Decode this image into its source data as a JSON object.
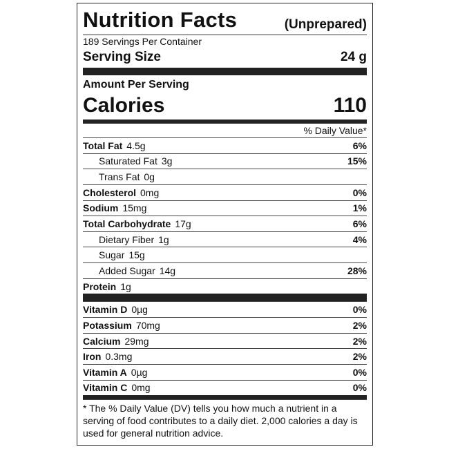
{
  "header": {
    "title": "Nutrition Facts",
    "qualifier": "(Unprepared)",
    "servings": "189 Servings Per Container",
    "serving_size_label": "Serving Size",
    "serving_size": "24 g"
  },
  "amount_per_serving": "Amount Per Serving",
  "calories": {
    "label": "Calories",
    "value": "110"
  },
  "dv_header": "% Daily Value*",
  "nutrients": [
    {
      "name": "Total Fat",
      "amount": "4.5g",
      "dv": "6%"
    },
    {
      "name": "Saturated Fat",
      "amount": "3g",
      "dv": "15%",
      "indent": true
    },
    {
      "name": "Trans Fat",
      "amount": "0g",
      "indent": true
    },
    {
      "name": "Cholesterol",
      "amount": "0mg",
      "dv": "0%"
    },
    {
      "name": "Sodium",
      "amount": "15mg",
      "dv": "1%"
    },
    {
      "name": "Total Carbohydrate",
      "amount": "17g",
      "dv": "6%"
    },
    {
      "name": "Dietary Fiber",
      "amount": "1g",
      "dv": "4%",
      "indent": true
    },
    {
      "name": "Sugar",
      "amount": "15g",
      "indent": true
    },
    {
      "name": "Added Sugar",
      "amount": "14g",
      "dv": "28%",
      "indent": true
    },
    {
      "name": "Protein",
      "amount": "1g"
    }
  ],
  "vitamins": [
    {
      "name": "Vitamin D",
      "amount": "0µg",
      "dv": "0%"
    },
    {
      "name": "Potassium",
      "amount": "70mg",
      "dv": "2%"
    },
    {
      "name": "Calcium",
      "amount": "29mg",
      "dv": "2%"
    },
    {
      "name": "Iron",
      "amount": "0.3mg",
      "dv": "2%"
    },
    {
      "name": "Vitamin A",
      "amount": "0µg",
      "dv": "0%"
    },
    {
      "name": "Vitamin C",
      "amount": "0mg",
      "dv": "0%"
    }
  ],
  "footnote": "* The % Daily Value (DV) tells you how much a nutrient in a serving of food contributes to a daily diet. 2,000 calories a day is used for general nutrition advice."
}
